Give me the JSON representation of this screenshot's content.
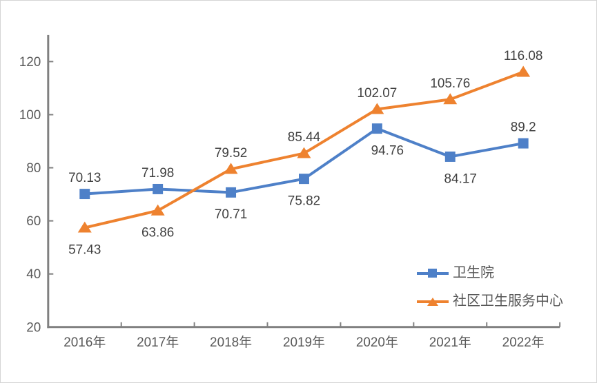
{
  "chart_data": {
    "type": "line",
    "categories": [
      "2016年",
      "2017年",
      "2018年",
      "2019年",
      "2020年",
      "2021年",
      "2022年"
    ],
    "series": [
      {
        "name": "卫生院",
        "color": "#4E80C8",
        "marker": "square",
        "values": [
          70.13,
          71.98,
          70.71,
          75.82,
          94.76,
          84.17,
          89.2
        ],
        "label_positions": [
          "above",
          "above",
          "below",
          "below",
          "below-right",
          "below-right",
          "above"
        ]
      },
      {
        "name": "社区卫生服务中心",
        "color": "#EE822F",
        "marker": "triangle",
        "values": [
          57.43,
          63.86,
          79.52,
          85.44,
          102.07,
          105.76,
          116.08
        ],
        "label_positions": [
          "below",
          "below",
          "above",
          "above",
          "above",
          "above",
          "above"
        ]
      }
    ],
    "title": "",
    "xlabel": "",
    "ylabel": "",
    "yticks": [
      20,
      40,
      60,
      80,
      100,
      120
    ],
    "ylim": [
      20,
      130
    ],
    "grid": false,
    "data_labels": true,
    "legend_position": "inside-lower-right",
    "colors": {
      "axis": "#808080",
      "tick_label": "#595959",
      "data_label": "#404040",
      "legend_text": "#595959",
      "background": "#FFFFFF",
      "border": "#D5D5D5"
    }
  }
}
